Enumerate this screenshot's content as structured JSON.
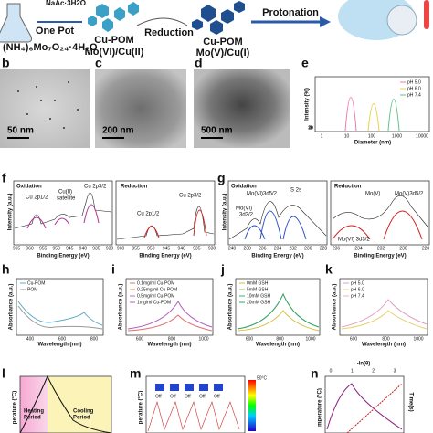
{
  "schematic": {
    "reagent_top": "NaAc·3H2O",
    "one_pot": "One Pot",
    "precursor": "(NH₄)₆Mo₇O₂₄·4H₂O",
    "product1_name": "Cu-POM",
    "product1_state": "Mo(VI)/Cu(II)",
    "step1": "Reduction",
    "product2_name": "Cu-POM",
    "product2_state": "Mo(V)/Cu(I)",
    "step2": "Protonation"
  },
  "panels": {
    "b": {
      "label": "b",
      "scale": "50 nm"
    },
    "c": {
      "label": "c",
      "scale": "200 nm"
    },
    "d": {
      "label": "d",
      "scale": "500 nm"
    },
    "e": {
      "label": "e",
      "ylabel": "Intensity (%)",
      "xlabel": "Diameter (nm)",
      "legend": [
        "pH 5.0",
        "pH 6.0",
        "pH 7.4"
      ],
      "xticks": [
        "1",
        "10",
        "100",
        "1000",
        "10000"
      ],
      "yticks": [
        "0",
        "10",
        "20",
        "30"
      ]
    },
    "f": {
      "label": "f",
      "ylabel": "Intensity (a.u.)",
      "left_title": "Oxidation",
      "right_title": "Reduction",
      "left_peaks": [
        "Cu 2p1/2",
        "Cu(II)",
        "satellite",
        "Cu 2p3/2"
      ],
      "right_peaks": [
        "Cu 2p1/2",
        "Cu 2p3/2"
      ],
      "xlabel": "Binding Energy (eV)",
      "left_xticks": [
        "965",
        "960",
        "955",
        "950",
        "945",
        "940",
        "935",
        "930"
      ],
      "right_xticks": [
        "960",
        "955",
        "950",
        "945",
        "940",
        "935",
        "930"
      ]
    },
    "g": {
      "label": "g",
      "ylabel": "Intensity (a.u.)",
      "left_title": "Oxidation",
      "right_title": "Reduction",
      "left_peaks": [
        "Mo(VI)3d5/2",
        "S 2s",
        "Mo(VI)",
        "3d3/2"
      ],
      "right_peaks": [
        "Mo(V)",
        "Mo(V)3d5/2",
        "Mo(VI) 3d3/2"
      ],
      "xlabel": "Binding Energy (eV)",
      "left_xticks": [
        "240",
        "238",
        "236",
        "234",
        "232",
        "230",
        "228"
      ],
      "right_xticks": [
        "236",
        "234",
        "232",
        "230",
        "228"
      ]
    },
    "h": {
      "label": "h",
      "ylabel": "Absorbance (a.u.)",
      "xlabel": "Wavelength (nm)",
      "legend": [
        "Cu-POM",
        "POM"
      ],
      "xticks": [
        "400",
        "600",
        "800"
      ]
    },
    "i": {
      "label": "i",
      "ylabel": "Absorbance (a.u.)",
      "xlabel": "Wavelength (nm)",
      "legend": [
        "0.1mg/ml Cu-POM",
        "0.25mg/ml Cu-POM",
        "0.5mg/ml Cu-POM",
        "1mg/ml Cu-POM"
      ],
      "xticks": [
        "600",
        "800",
        "1000"
      ]
    },
    "j": {
      "label": "j",
      "ylabel": "Absorbance (a.u.)",
      "xlabel": "Wavelength (nm)",
      "legend": [
        "0mM GSH",
        "5mM GSH",
        "10mM GSH",
        "20mM GSH"
      ],
      "xticks": [
        "600",
        "800",
        "1000"
      ]
    },
    "k": {
      "label": "k",
      "ylabel": "Absorbance (a.u.)",
      "xlabel": "Wavelength (nm)",
      "legend": [
        "pH 5.0",
        "pH 6.0",
        "pH 7.4"
      ],
      "xticks": [
        "600",
        "800",
        "1000"
      ]
    },
    "l": {
      "label": "l",
      "ylabel": "perature (°C)",
      "heating": [
        "Heating",
        "Period"
      ],
      "cooling": [
        "Cooling",
        "Period"
      ]
    },
    "m": {
      "label": "m",
      "ylabel": "perature (°C)",
      "off": "Off",
      "colorbar": "50°C"
    },
    "n": {
      "label": "n",
      "ylabel": "mperature (°C)",
      "top_label": "-ln(θ)",
      "top_ticks": [
        "0",
        "1",
        "2",
        "3"
      ],
      "right_label": "Time(s)"
    }
  }
}
